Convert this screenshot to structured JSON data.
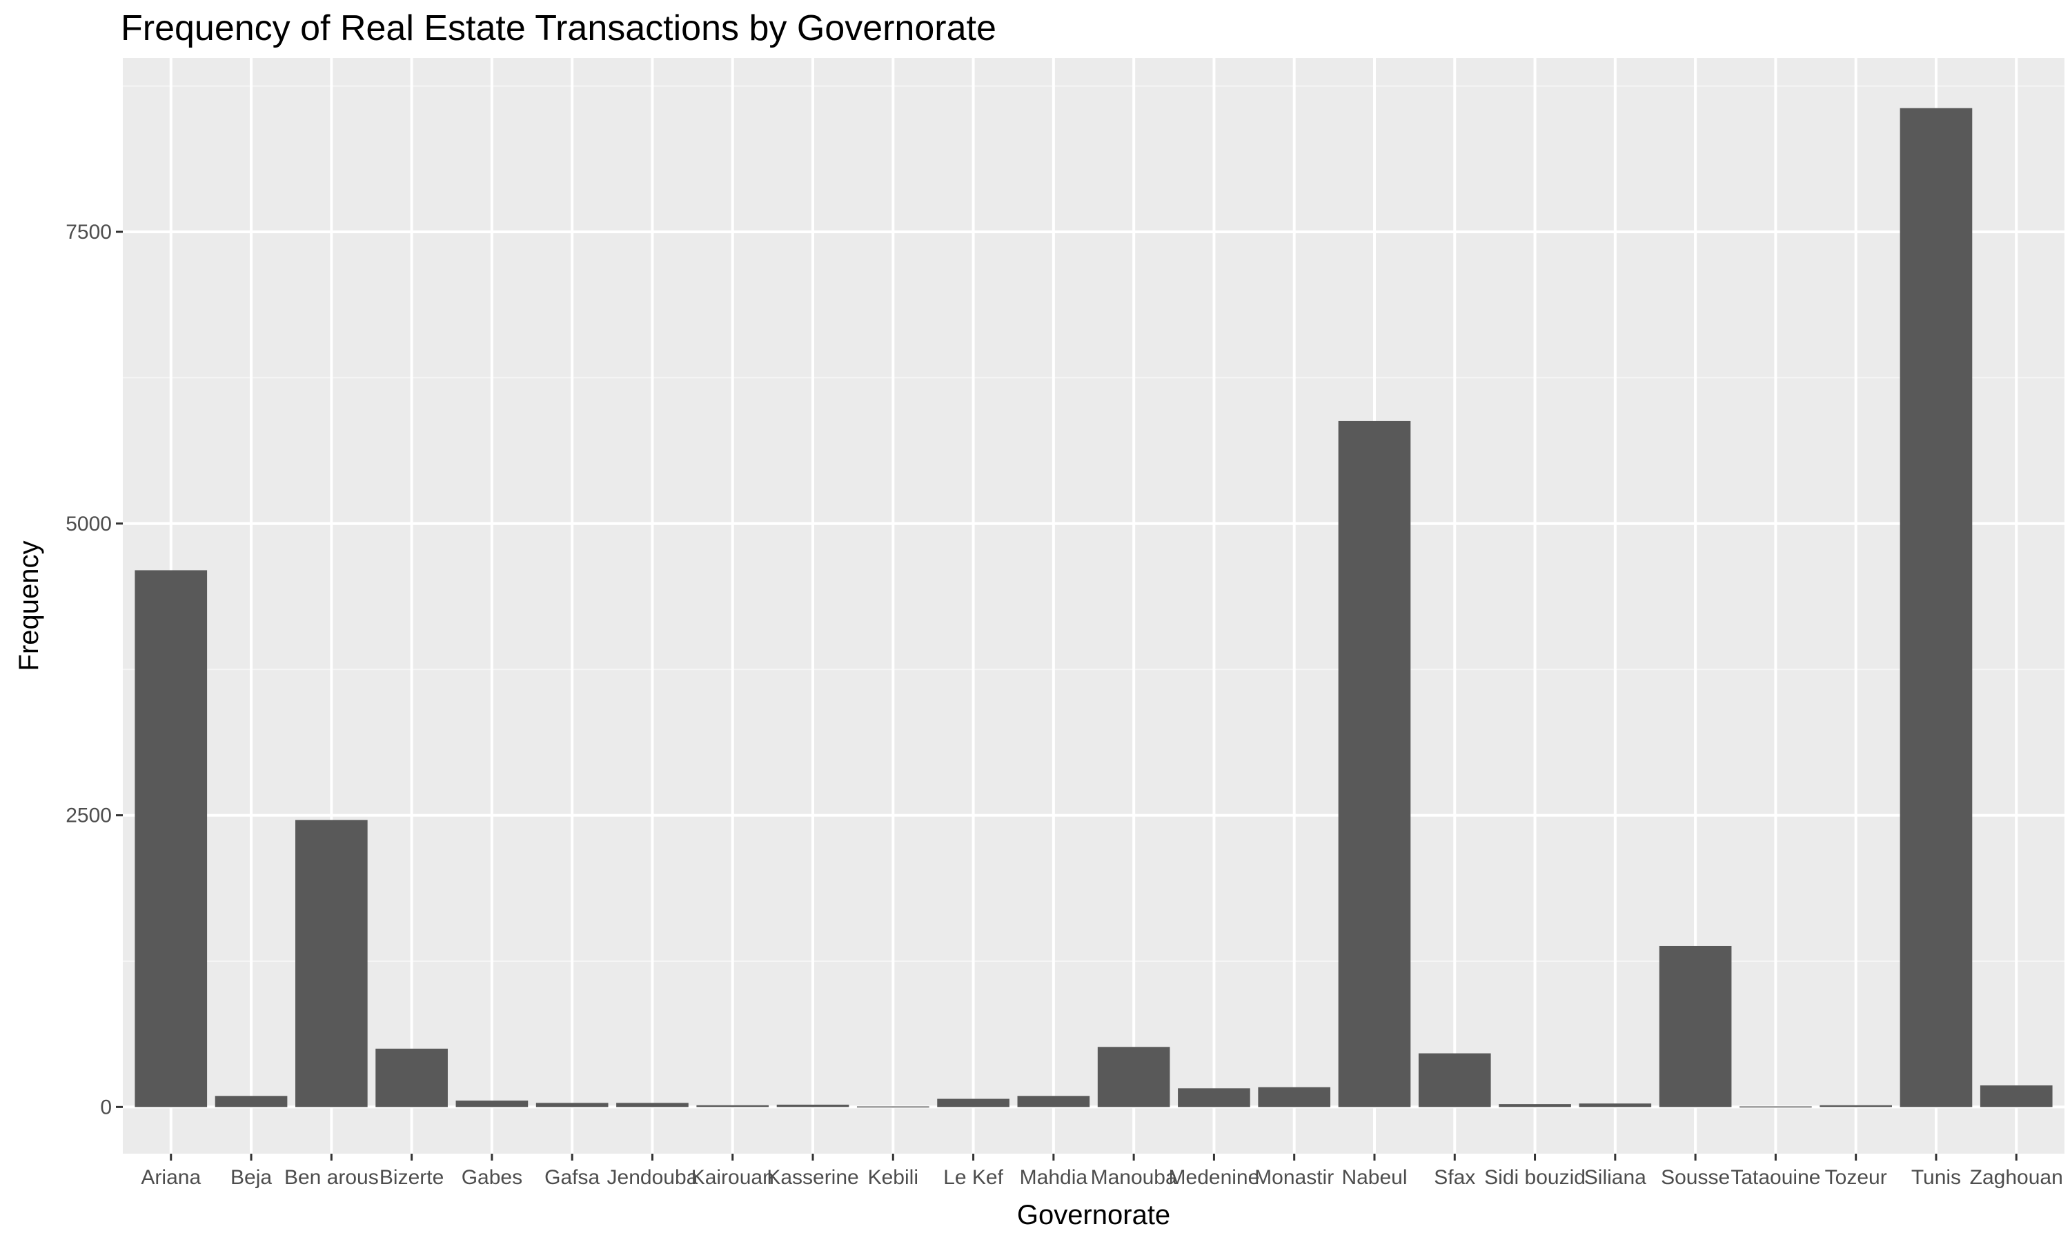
{
  "chart_data": {
    "type": "bar",
    "title": "Frequency of Real Estate Transactions by Governorate",
    "xlabel": "Governorate",
    "ylabel": "Frequency",
    "categories": [
      "Ariana",
      "Beja",
      "Ben arous",
      "Bizerte",
      "Gabes",
      "Gafsa",
      "Jendouba",
      "Kairouan",
      "Kasserine",
      "Kebili",
      "Le Kef",
      "Mahdia",
      "Manouba",
      "Medenine",
      "Monastir",
      "Nabeul",
      "Sfax",
      "Sidi bouzid",
      "Siliana",
      "Sousse",
      "Tataouine",
      "Tozeur",
      "Tunis",
      "Zaghouan"
    ],
    "values": [
      4600,
      95,
      2460,
      500,
      55,
      35,
      35,
      15,
      20,
      5,
      70,
      95,
      515,
      160,
      170,
      5880,
      460,
      25,
      30,
      1380,
      5,
      15,
      8560,
      185
    ],
    "yticks": [
      0,
      2500,
      5000,
      7500
    ],
    "ylim": [
      -400,
      8990
    ],
    "grid": true,
    "legend": "none",
    "colors": {
      "bar": "#595959",
      "panel": "#ebebeb",
      "grid_major": "#ffffff",
      "grid_minor": "#f5f5f5",
      "tick": "#333333"
    }
  }
}
